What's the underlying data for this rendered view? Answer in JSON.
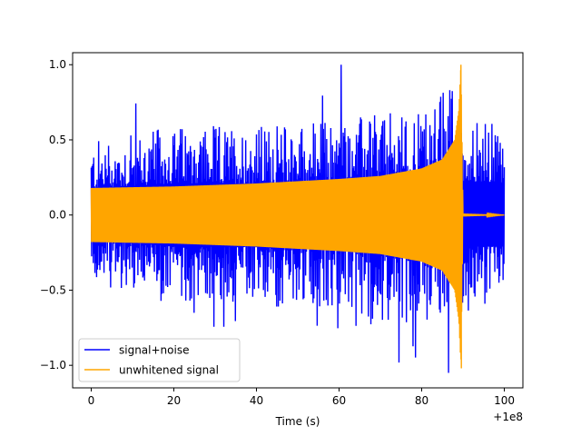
{
  "chart_data": {
    "type": "line",
    "title": "",
    "xlabel": "Time (s)",
    "ylabel": "",
    "x_offset_label": "+1e8",
    "xlim": [
      -4.5,
      104.5
    ],
    "ylim": [
      -1.15,
      1.08
    ],
    "x_ticks": [
      0,
      20,
      40,
      60,
      80,
      100
    ],
    "x_tick_labels": [
      "0",
      "20",
      "40",
      "60",
      "80",
      "100"
    ],
    "y_ticks": [
      -1.0,
      -0.5,
      0.0,
      0.5,
      1.0
    ],
    "y_tick_labels": [
      "−1.0",
      "−0.5",
      "0.0",
      "0.5",
      "1.0"
    ],
    "grid": false,
    "legend_position": "lower-left",
    "series": [
      {
        "name": "signal+noise",
        "color": "#0000ff",
        "x_range": [
          0,
          100
        ],
        "envelope_upper": {
          "x": [
            0,
            20,
            40,
            60,
            80,
            89,
            90,
            100
          ],
          "y": [
            0.5,
            0.6,
            0.6,
            0.65,
            0.7,
            0.95,
            0.65,
            0.6
          ]
        },
        "envelope_lower": {
          "x": [
            0,
            20,
            40,
            60,
            80,
            89,
            90,
            100
          ],
          "y": [
            -0.45,
            -0.6,
            -0.6,
            -0.65,
            -0.75,
            -0.6,
            -0.6,
            -0.6
          ]
        },
        "peak_max": {
          "x": 60.5,
          "y": 1.0
        },
        "peak_min": {
          "x": 86.5,
          "y": -1.05
        }
      },
      {
        "name": "unwhitened signal",
        "color": "#ffa500",
        "x_range": [
          0,
          100
        ],
        "envelope": {
          "x": [
            0,
            20,
            40,
            60,
            70,
            80,
            85,
            88,
            89,
            89.5,
            90,
            100
          ],
          "y": [
            0.18,
            0.19,
            0.21,
            0.24,
            0.26,
            0.31,
            0.37,
            0.5,
            0.7,
            1.0,
            0.01,
            0.0
          ]
        },
        "peak_max": {
          "x": 89.5,
          "y": 1.0
        },
        "peak_min": {
          "x": 89.6,
          "y": -1.02
        }
      }
    ]
  }
}
